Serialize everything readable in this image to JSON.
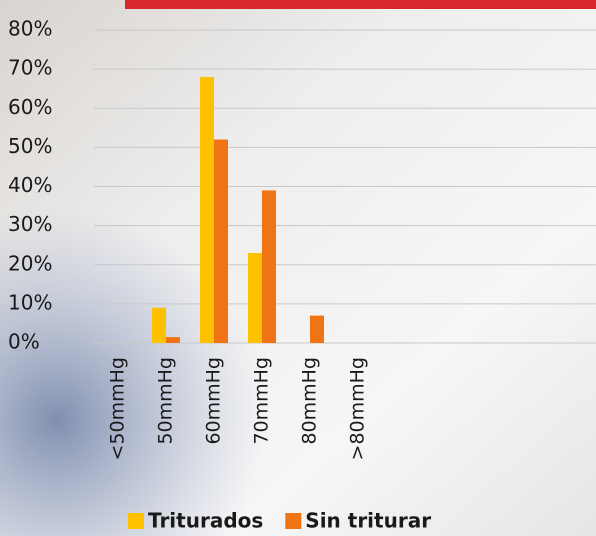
{
  "chart_data": {
    "type": "bar",
    "categories": [
      "<50mmHg",
      "50mmHg",
      "60mmHg",
      "70mmHg",
      "80mmHg",
      ">80mmHg"
    ],
    "series": [
      {
        "name": "Triturados",
        "color": "#ffc000",
        "values": [
          0,
          9,
          68,
          23,
          0,
          0
        ]
      },
      {
        "name": "Sin triturar",
        "color": "#f07414",
        "values": [
          0,
          1.5,
          52,
          39,
          7,
          0
        ]
      }
    ],
    "ylim": [
      0,
      80
    ],
    "yticks": [
      {
        "value": 0,
        "label": "0%"
      },
      {
        "value": 10,
        "label": "10%"
      },
      {
        "value": 20,
        "label": "20%"
      },
      {
        "value": 30,
        "label": "30%"
      },
      {
        "value": 40,
        "label": "40%"
      },
      {
        "value": 50,
        "label": "50%"
      },
      {
        "value": 60,
        "label": "60%"
      },
      {
        "value": 70,
        "label": "70%"
      },
      {
        "value": 80,
        "label": "80%"
      }
    ],
    "grid": true
  }
}
